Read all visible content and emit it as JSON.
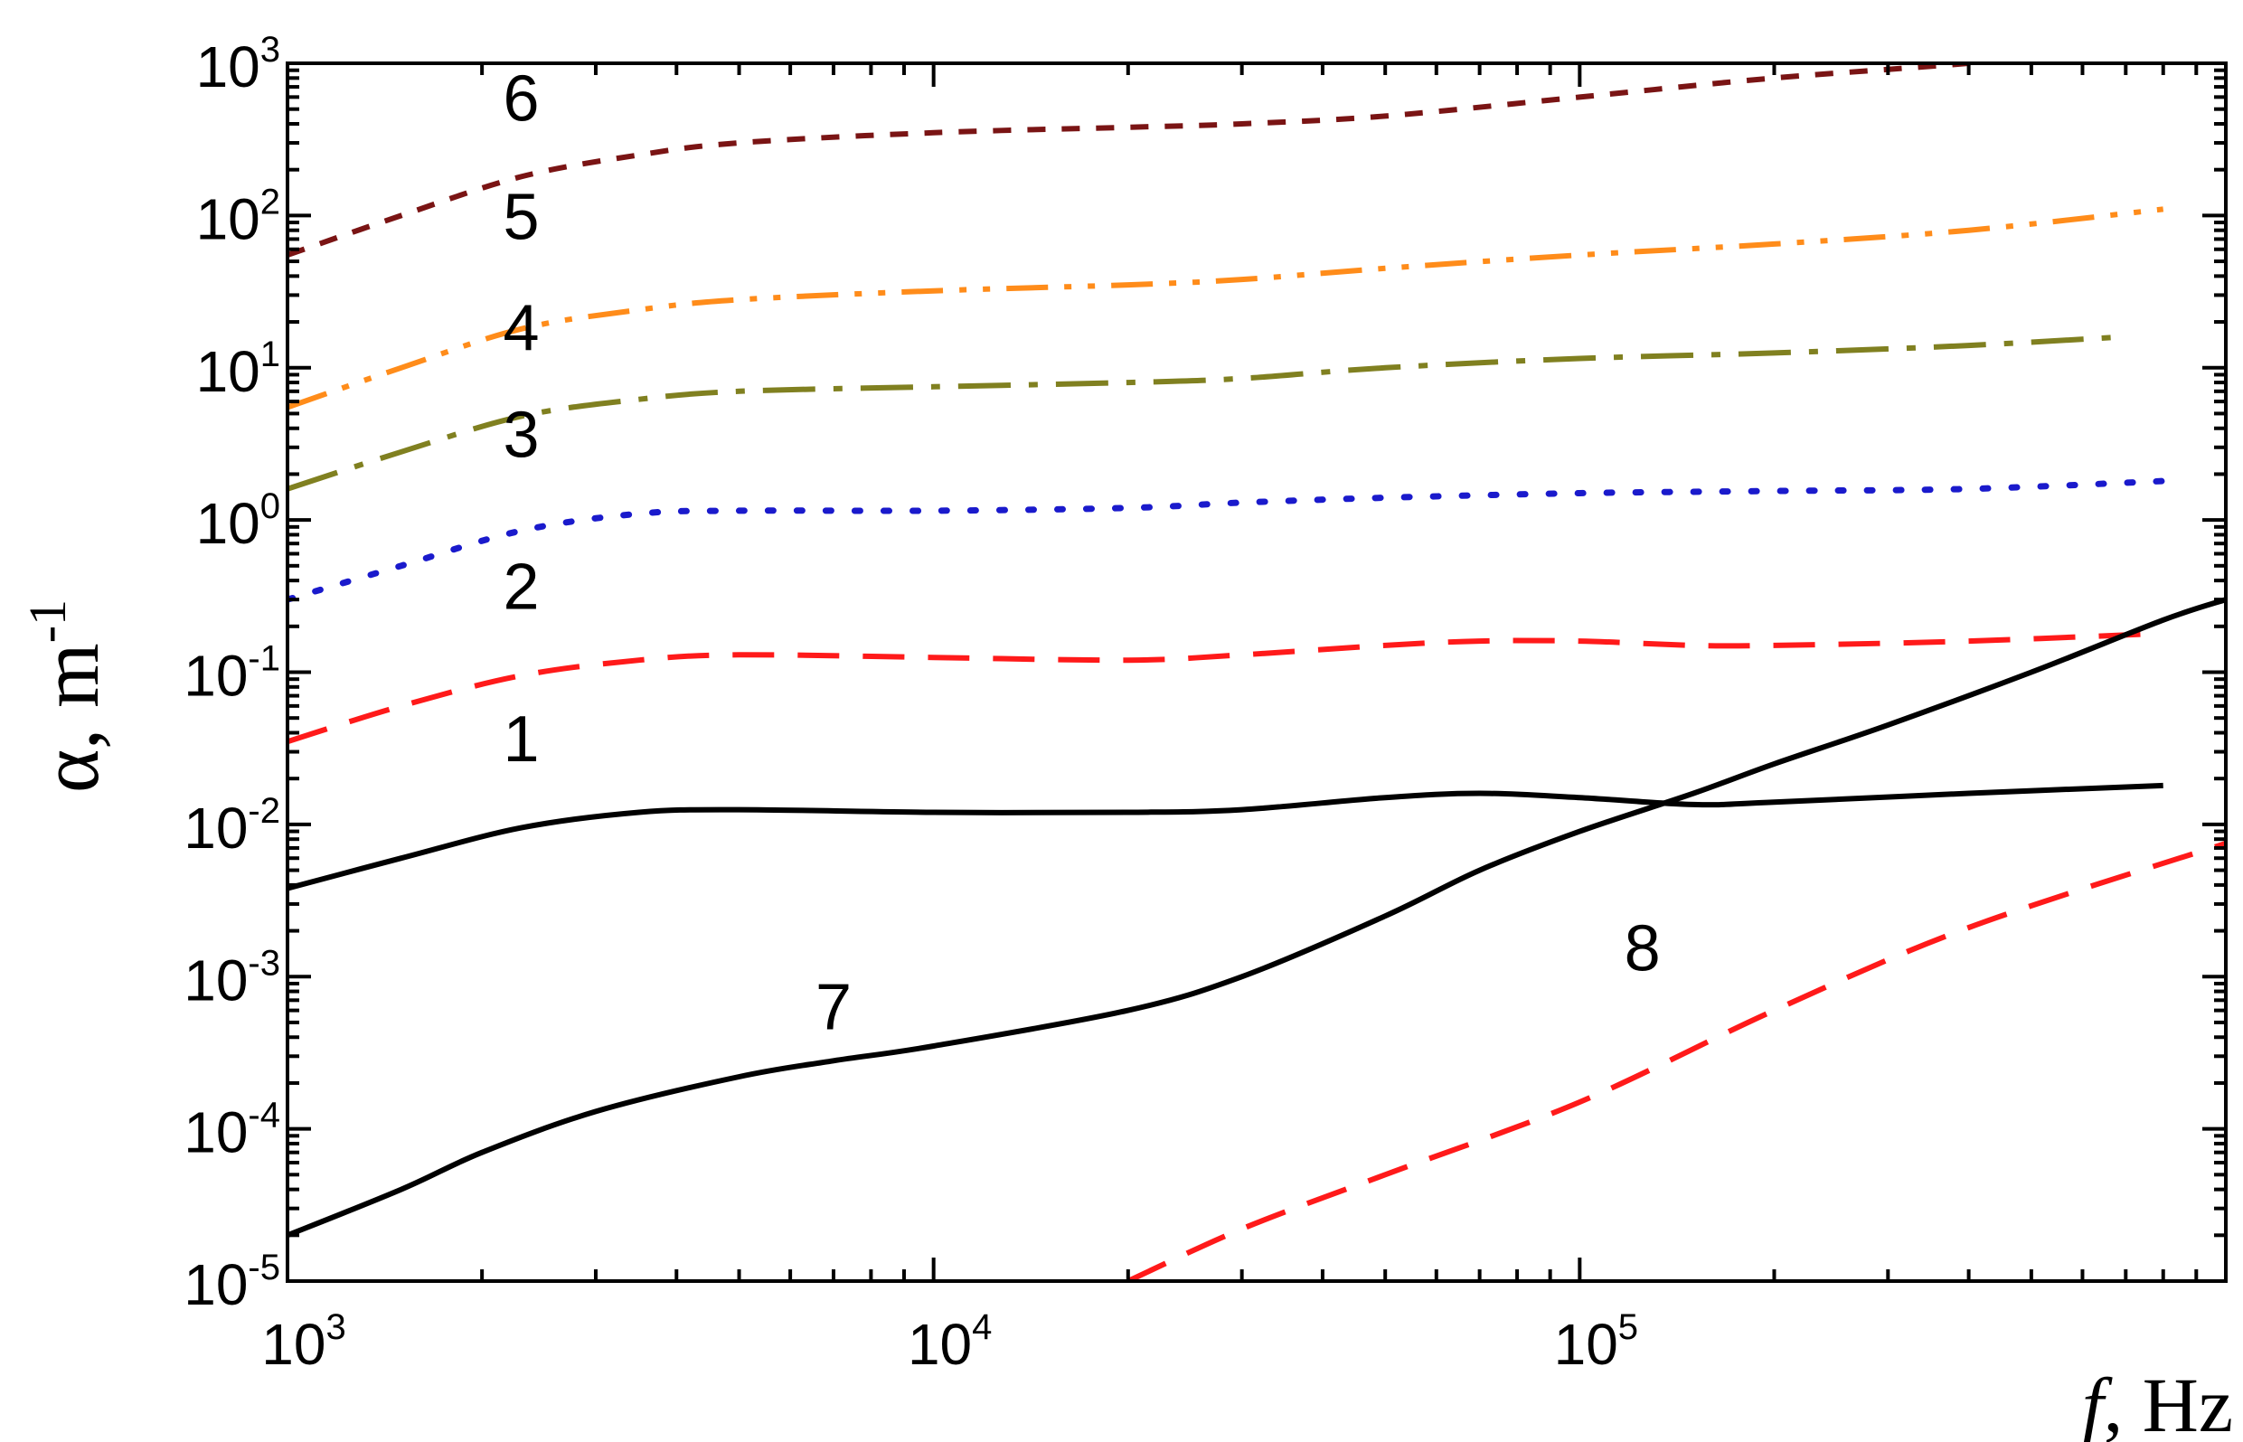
{
  "chart_data": {
    "type": "line",
    "title": "",
    "xlabel": {
      "symbol": "f",
      "unit": ", Hz"
    },
    "ylabel": {
      "symbol": "α",
      "unit": ", m",
      "unit_exp": "-1"
    },
    "xscale": "log",
    "yscale": "log",
    "xlim": [
      1000,
      1000000
    ],
    "ylim": [
      1e-05,
      1000
    ],
    "grid": false,
    "x_ticks": [
      {
        "base": "10",
        "exp": "3",
        "value": 1000
      },
      {
        "base": "10",
        "exp": "4",
        "value": 10000
      },
      {
        "base": "10",
        "exp": "5",
        "value": 100000
      }
    ],
    "y_ticks": [
      {
        "base": "10",
        "exp": "-5",
        "value": 1e-05
      },
      {
        "base": "10",
        "exp": "-4",
        "value": 0.0001
      },
      {
        "base": "10",
        "exp": "-3",
        "value": 0.001
      },
      {
        "base": "10",
        "exp": "-2",
        "value": 0.01
      },
      {
        "base": "10",
        "exp": "-1",
        "value": 0.1
      },
      {
        "base": "10",
        "exp": "0",
        "value": 1
      },
      {
        "base": "10",
        "exp": "1",
        "value": 10
      },
      {
        "base": "10",
        "exp": "2",
        "value": 100
      },
      {
        "base": "10",
        "exp": "3",
        "value": 1000
      }
    ],
    "series": [
      {
        "label": "1",
        "color": "#000000",
        "style": "solid",
        "label_at": [
          2300,
          0.026
        ],
        "x": [
          1000,
          1500,
          2300,
          3500,
          5000,
          10000,
          20000,
          30000,
          50000,
          70000,
          100000,
          150000,
          200000,
          400000,
          800000
        ],
        "y": [
          0.0038,
          0.006,
          0.0095,
          0.012,
          0.0125,
          0.012,
          0.012,
          0.0125,
          0.015,
          0.016,
          0.015,
          0.0135,
          0.014,
          0.016,
          0.018
        ]
      },
      {
        "label": "2",
        "color": "#ff1a1a",
        "style": "dashed",
        "label_at": [
          2300,
          0.26
        ],
        "x": [
          1000,
          1500,
          2300,
          3500,
          5000,
          10000,
          20000,
          30000,
          50000,
          70000,
          100000,
          150000,
          200000,
          400000,
          800000
        ],
        "y": [
          0.035,
          0.06,
          0.095,
          0.12,
          0.13,
          0.125,
          0.12,
          0.13,
          0.15,
          0.16,
          0.16,
          0.15,
          0.15,
          0.16,
          0.18
        ]
      },
      {
        "label": "3",
        "color": "#1a1acc",
        "style": "dotted",
        "label_at": [
          2300,
          2.6
        ],
        "x": [
          1000,
          1500,
          2300,
          3500,
          5000,
          10000,
          20000,
          30000,
          50000,
          100000,
          200000,
          400000,
          800000
        ],
        "y": [
          0.3,
          0.5,
          0.85,
          1.1,
          1.15,
          1.15,
          1.2,
          1.3,
          1.4,
          1.5,
          1.55,
          1.6,
          1.8
        ]
      },
      {
        "label": "4",
        "color": "#808020",
        "style": "dash-dot",
        "label_at": [
          2300,
          13
        ],
        "x": [
          1000,
          1500,
          2300,
          3500,
          5000,
          10000,
          20000,
          30000,
          50000,
          100000,
          200000,
          400000,
          700000
        ],
        "y": [
          1.6,
          2.8,
          4.8,
          6.2,
          7.0,
          7.5,
          8.0,
          8.5,
          10,
          11.5,
          12.5,
          14,
          16
        ]
      },
      {
        "label": "5",
        "color": "#ff8c1a",
        "style": "dash-dot-dot",
        "label_at": [
          2300,
          70
        ],
        "x": [
          1000,
          1500,
          2300,
          3500,
          5000,
          10000,
          20000,
          30000,
          50000,
          100000,
          200000,
          400000,
          800000
        ],
        "y": [
          5.5,
          10,
          18,
          24,
          28,
          32,
          35,
          38,
          45,
          55,
          65,
          80,
          110
        ]
      },
      {
        "label": "6",
        "color": "#7a1414",
        "style": "short-dash",
        "label_at": [
          2300,
          420
        ],
        "x": [
          1000,
          1500,
          2300,
          3500,
          5000,
          10000,
          20000,
          30000,
          50000,
          100000,
          200000,
          400000,
          600000
        ],
        "y": [
          55,
          100,
          180,
          250,
          300,
          350,
          380,
          400,
          450,
          600,
          800,
          1000,
          1200
        ]
      },
      {
        "label": "7",
        "color": "#000000",
        "style": "solid",
        "label_at": [
          7000,
          0.00045
        ],
        "x": [
          1000,
          1500,
          2000,
          3000,
          5000,
          7000,
          10000,
          20000,
          30000,
          50000,
          70000,
          100000,
          150000,
          200000,
          300000,
          500000,
          800000,
          1000000
        ],
        "y": [
          2e-05,
          4e-05,
          7e-05,
          0.00013,
          0.00022,
          0.00028,
          0.00035,
          0.0006,
          0.001,
          0.0025,
          0.005,
          0.009,
          0.016,
          0.025,
          0.045,
          0.1,
          0.22,
          0.3
        ]
      },
      {
        "label": "8",
        "color": "#ff1a1a",
        "style": "dashed",
        "label_at": [
          125000,
          0.0011
        ],
        "x": [
          20000,
          30000,
          50000,
          100000,
          200000,
          400000,
          1000000
        ],
        "y": [
          1e-05,
          2.2e-05,
          5e-05,
          0.00015,
          0.0006,
          0.0021,
          0.0075
        ]
      }
    ]
  }
}
